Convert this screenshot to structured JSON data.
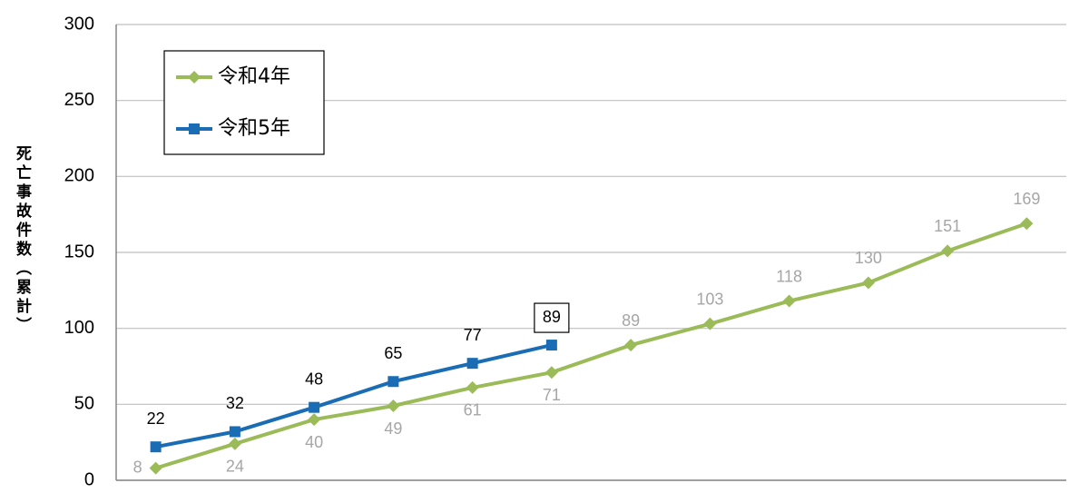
{
  "chart_data": {
    "type": "line",
    "y_label": "死亡事故件数（累計）",
    "categories": [
      null,
      null,
      null,
      null,
      null,
      null,
      null,
      null,
      null,
      null,
      null,
      null
    ],
    "series": [
      {
        "name": "令和4年",
        "color": "#9bbb59",
        "marker": "diamond",
        "label_color": "#a6a6a6",
        "values": [
          8,
          24,
          40,
          49,
          61,
          71,
          89,
          103,
          118,
          130,
          151,
          169
        ]
      },
      {
        "name": "令和5年",
        "color": "#1a6db5",
        "marker": "square",
        "label_color": "#000000",
        "values": [
          22,
          32,
          48,
          65,
          77,
          89,
          null,
          null,
          null,
          null,
          null,
          null
        ]
      }
    ],
    "ylim": [
      0,
      300
    ],
    "yticks": [
      0,
      50,
      100,
      150,
      200,
      250,
      300
    ],
    "grid": true
  }
}
